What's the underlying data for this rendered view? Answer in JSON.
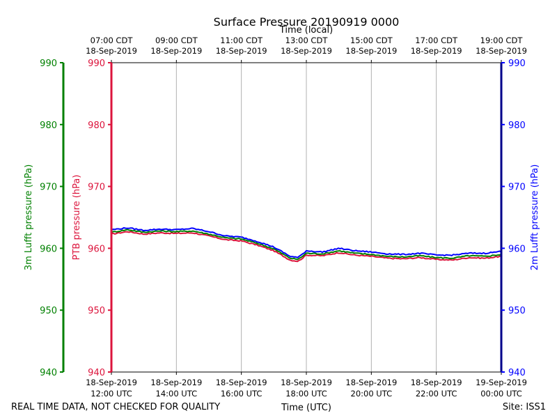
{
  "chart_data": {
    "type": "line",
    "title": "Surface Pressure 20190919 0000",
    "top_axis_label": "Time (local)",
    "top_ticks": [
      {
        "time": "07:00 CDT",
        "date": "18-Sep-2019"
      },
      {
        "time": "09:00 CDT",
        "date": "18-Sep-2019"
      },
      {
        "time": "11:00 CDT",
        "date": "18-Sep-2019"
      },
      {
        "time": "13:00 CDT",
        "date": "18-Sep-2019"
      },
      {
        "time": "15:00 CDT",
        "date": "18-Sep-2019"
      },
      {
        "time": "17:00 CDT",
        "date": "18-Sep-2019"
      },
      {
        "time": "19:00 CDT",
        "date": "18-Sep-2019"
      }
    ],
    "xlabel": "Time (UTC)",
    "bottom_ticks": [
      {
        "date": "18-Sep-2019",
        "time": "12:00 UTC"
      },
      {
        "date": "18-Sep-2019",
        "time": "14:00 UTC"
      },
      {
        "date": "18-Sep-2019",
        "time": "16:00 UTC"
      },
      {
        "date": "18-Sep-2019",
        "time": "18:00 UTC"
      },
      {
        "date": "18-Sep-2019",
        "time": "20:00 UTC"
      },
      {
        "date": "18-Sep-2019",
        "time": "22:00 UTC"
      },
      {
        "date": "19-Sep-2019",
        "time": "00:00 UTC"
      }
    ],
    "xlim_hours": [
      0,
      12
    ],
    "ylim": [
      940,
      990
    ],
    "yticks": [
      "990",
      "980",
      "970",
      "960",
      "950",
      "940"
    ],
    "axes": {
      "outer_left": {
        "label": "3m Lufft pressure (hPa)",
        "color": "#008000"
      },
      "inner_left": {
        "label": "PTB pressure (hPa)",
        "color": "#dc143c"
      },
      "right": {
        "label": "2m Lufft pressure (hPa)",
        "color": "#0000ff"
      }
    },
    "grid": "vertical",
    "x": [
      0,
      0.5,
      1.0,
      1.5,
      2.0,
      2.5,
      3.0,
      3.5,
      4.0,
      4.5,
      5.0,
      5.5,
      5.75,
      6.0,
      6.5,
      7.0,
      7.5,
      8.0,
      8.5,
      9.0,
      9.5,
      10.0,
      10.5,
      11.0,
      11.5,
      12.0
    ],
    "series": [
      {
        "name": "PTB pressure",
        "color": "#dc143c",
        "values": [
          962.3,
          962.7,
          962.3,
          962.5,
          962.4,
          962.5,
          962.0,
          961.4,
          961.2,
          960.5,
          959.6,
          958.1,
          957.9,
          958.9,
          958.8,
          959.3,
          958.9,
          958.7,
          958.4,
          958.3,
          958.5,
          958.2,
          958.1,
          958.5,
          958.4,
          958.7
        ]
      },
      {
        "name": "3m Lufft pressure",
        "color": "#008000",
        "values": [
          962.6,
          963.0,
          962.6,
          962.8,
          962.7,
          962.8,
          962.3,
          961.7,
          961.5,
          960.8,
          959.9,
          958.4,
          958.2,
          959.2,
          959.1,
          959.6,
          959.2,
          959.0,
          958.7,
          958.6,
          958.8,
          958.5,
          958.4,
          958.8,
          958.7,
          959.0
        ]
      },
      {
        "name": "2m Lufft pressure",
        "color": "#0000ff",
        "values": [
          963.0,
          963.3,
          962.9,
          963.1,
          963.0,
          963.2,
          962.7,
          962.0,
          961.8,
          961.1,
          960.2,
          958.7,
          958.5,
          959.6,
          959.4,
          960.0,
          959.6,
          959.4,
          959.1,
          959.0,
          959.2,
          958.9,
          958.9,
          959.2,
          959.2,
          959.5
        ]
      }
    ]
  },
  "footer": {
    "left": "REAL TIME DATA, NOT CHECKED FOR QUALITY",
    "right": "Site: ISS1"
  }
}
